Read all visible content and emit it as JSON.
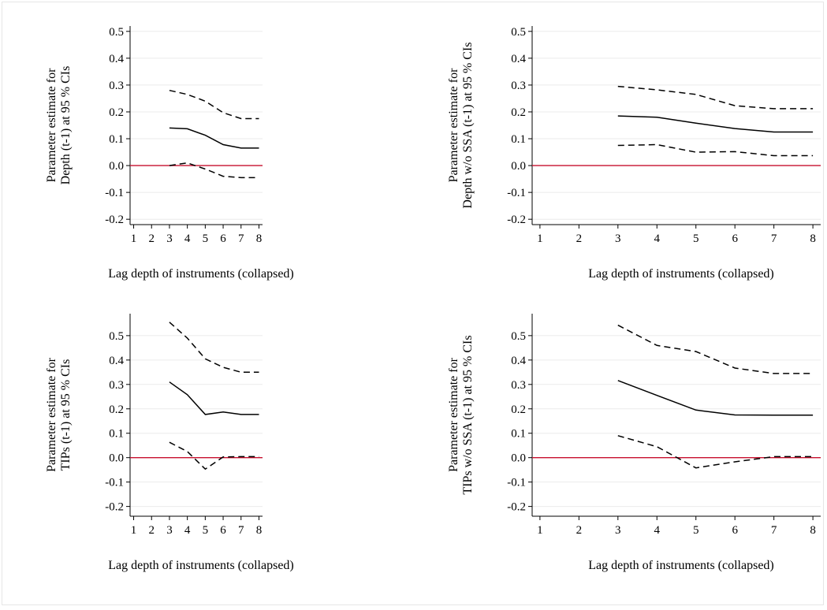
{
  "colors": {
    "background": "#ffffff",
    "gridline": "#ebebeb",
    "axis": "#000000",
    "series": "#000000",
    "reference_line": "#c8102e"
  },
  "chart_data": [
    {
      "type": "line",
      "ylabel": [
        "Parameter estimate for",
        "Depth (t-1) at 95 % CIs"
      ],
      "xlabel": "Lag depth of instruments (collapsed)",
      "xticks": [
        1,
        2,
        3,
        4,
        5,
        6,
        7,
        8
      ],
      "yticks": [
        "-0.2",
        "-0.1",
        "0.0",
        "0.1",
        "0.2",
        "0.3",
        "0.4",
        "0.5"
      ],
      "xlim": [
        0.8,
        8.2
      ],
      "ylim": [
        -0.22,
        0.52
      ],
      "grid": true,
      "reference_line_y": 0,
      "x": [
        3,
        4,
        5,
        6,
        7,
        8
      ],
      "series": [
        {
          "style": "dashed",
          "values": [
            0.28,
            0.265,
            0.24,
            0.197,
            0.175,
            0.175
          ]
        },
        {
          "style": "solid",
          "values": [
            0.14,
            0.137,
            0.113,
            0.078,
            0.065,
            0.065
          ]
        },
        {
          "style": "dashed",
          "values": [
            0.0,
            0.01,
            -0.013,
            -0.04,
            -0.045,
            -0.045
          ]
        }
      ]
    },
    {
      "type": "line",
      "ylabel": [
        "Parameter estimate for",
        "Depth w/o SSA (t-1) at 95 % CIs"
      ],
      "xlabel": "Lag depth of instruments (collapsed)",
      "xticks": [
        1,
        2,
        3,
        4,
        5,
        6,
        7,
        8
      ],
      "yticks": [
        "-0.2",
        "-0.1",
        "0.0",
        "0.1",
        "0.2",
        "0.3",
        "0.4",
        "0.5"
      ],
      "xlim": [
        0.8,
        8.2
      ],
      "ylim": [
        -0.22,
        0.52
      ],
      "grid": true,
      "reference_line_y": 0,
      "x": [
        3,
        4,
        5,
        6,
        7,
        8
      ],
      "series": [
        {
          "style": "dashed",
          "values": [
            0.295,
            0.282,
            0.265,
            0.223,
            0.212,
            0.212
          ]
        },
        {
          "style": "solid",
          "values": [
            0.185,
            0.18,
            0.158,
            0.138,
            0.125,
            0.125
          ]
        },
        {
          "style": "dashed",
          "values": [
            0.075,
            0.078,
            0.05,
            0.052,
            0.037,
            0.037
          ]
        }
      ]
    },
    {
      "type": "line",
      "ylabel": [
        "Parameter estimate for",
        "TIPs (t-1) at 95 % CIs"
      ],
      "xlabel": "Lag depth of instruments (collapsed)",
      "xticks": [
        1,
        2,
        3,
        4,
        5,
        6,
        7,
        8
      ],
      "yticks": [
        "-0.2",
        "-0.1",
        "0.0",
        "0.1",
        "0.2",
        "0.3",
        "0.4",
        "0.5"
      ],
      "xlim": [
        0.8,
        8.2
      ],
      "ylim": [
        -0.24,
        0.59
      ],
      "grid": true,
      "reference_line_y": 0,
      "x": [
        3,
        4,
        5,
        6,
        7,
        8
      ],
      "series": [
        {
          "style": "dashed",
          "values": [
            0.555,
            0.49,
            0.405,
            0.37,
            0.35,
            0.35
          ]
        },
        {
          "style": "solid",
          "values": [
            0.31,
            0.258,
            0.177,
            0.187,
            0.177,
            0.177
          ]
        },
        {
          "style": "dashed",
          "values": [
            0.063,
            0.025,
            -0.047,
            0.003,
            0.004,
            0.004
          ]
        }
      ]
    },
    {
      "type": "line",
      "ylabel": [
        "Parameter estimate for",
        "TIPs w/o SSA (t-1) at 95 % CIs"
      ],
      "xlabel": "Lag depth of instruments (collapsed)",
      "xticks": [
        1,
        2,
        3,
        4,
        5,
        6,
        7,
        8
      ],
      "yticks": [
        "-0.2",
        "-0.1",
        "0.0",
        "0.1",
        "0.2",
        "0.3",
        "0.4",
        "0.5"
      ],
      "xlim": [
        0.8,
        8.2
      ],
      "ylim": [
        -0.24,
        0.59
      ],
      "grid": true,
      "reference_line_y": 0,
      "x": [
        3,
        4,
        5,
        6,
        7,
        8
      ],
      "series": [
        {
          "style": "dashed",
          "values": [
            0.543,
            0.46,
            0.435,
            0.367,
            0.345,
            0.345
          ]
        },
        {
          "style": "solid",
          "values": [
            0.316,
            0.255,
            0.195,
            0.175,
            0.174,
            0.174
          ]
        },
        {
          "style": "dashed",
          "values": [
            0.09,
            0.045,
            -0.042,
            -0.017,
            0.004,
            0.004
          ]
        }
      ]
    }
  ]
}
